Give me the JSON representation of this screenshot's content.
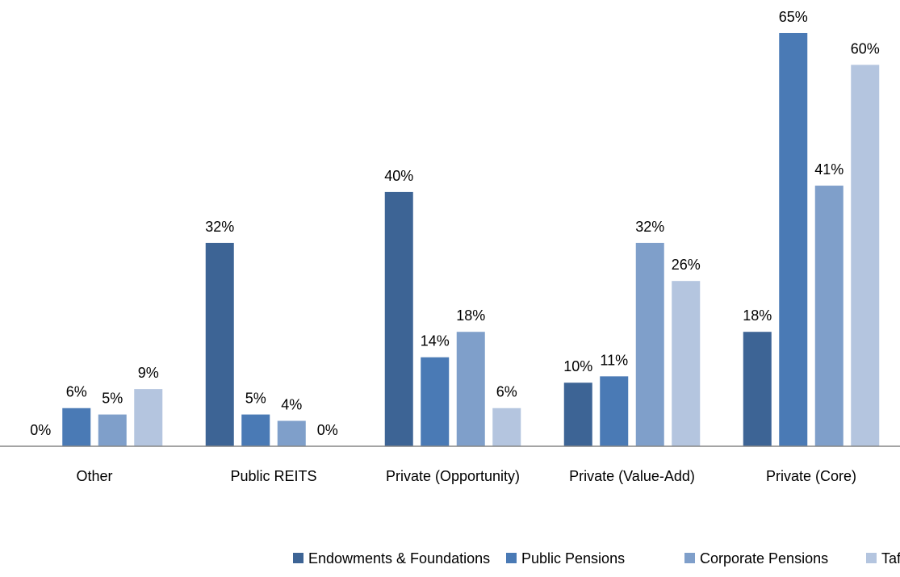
{
  "chart_data": {
    "type": "bar",
    "categories": [
      "Other",
      "Public REITS",
      "Private (Opportunity)",
      "Private (Value-Add)",
      "Private (Core)"
    ],
    "series": [
      {
        "name": "Endowments & Foundations",
        "color": "#3d6495",
        "values": [
          0,
          32,
          40,
          10,
          18
        ],
        "value_labels": [
          "0%",
          "32%",
          "40%",
          "10%",
          "18%"
        ]
      },
      {
        "name": "Public Pensions",
        "color": "#4a7ab5",
        "values": [
          6,
          5,
          14,
          11,
          65
        ],
        "value_labels": [
          "6%",
          "5%",
          "14%",
          "11%",
          "65%"
        ]
      },
      {
        "name": "Corporate Pensions",
        "color": "#7f9fca",
        "values": [
          5,
          4,
          18,
          32,
          41
        ],
        "value_labels": [
          "5%",
          "4%",
          "18%",
          "32%",
          "41%"
        ]
      },
      {
        "name": "Taft Hartley",
        "color": "#b4c5df",
        "values": [
          9,
          0,
          6,
          26,
          60
        ],
        "value_labels": [
          "9%",
          "0%",
          "6%",
          "26%",
          "60%"
        ]
      }
    ],
    "ylim": [
      0,
      70
    ],
    "legend": "bottom"
  }
}
